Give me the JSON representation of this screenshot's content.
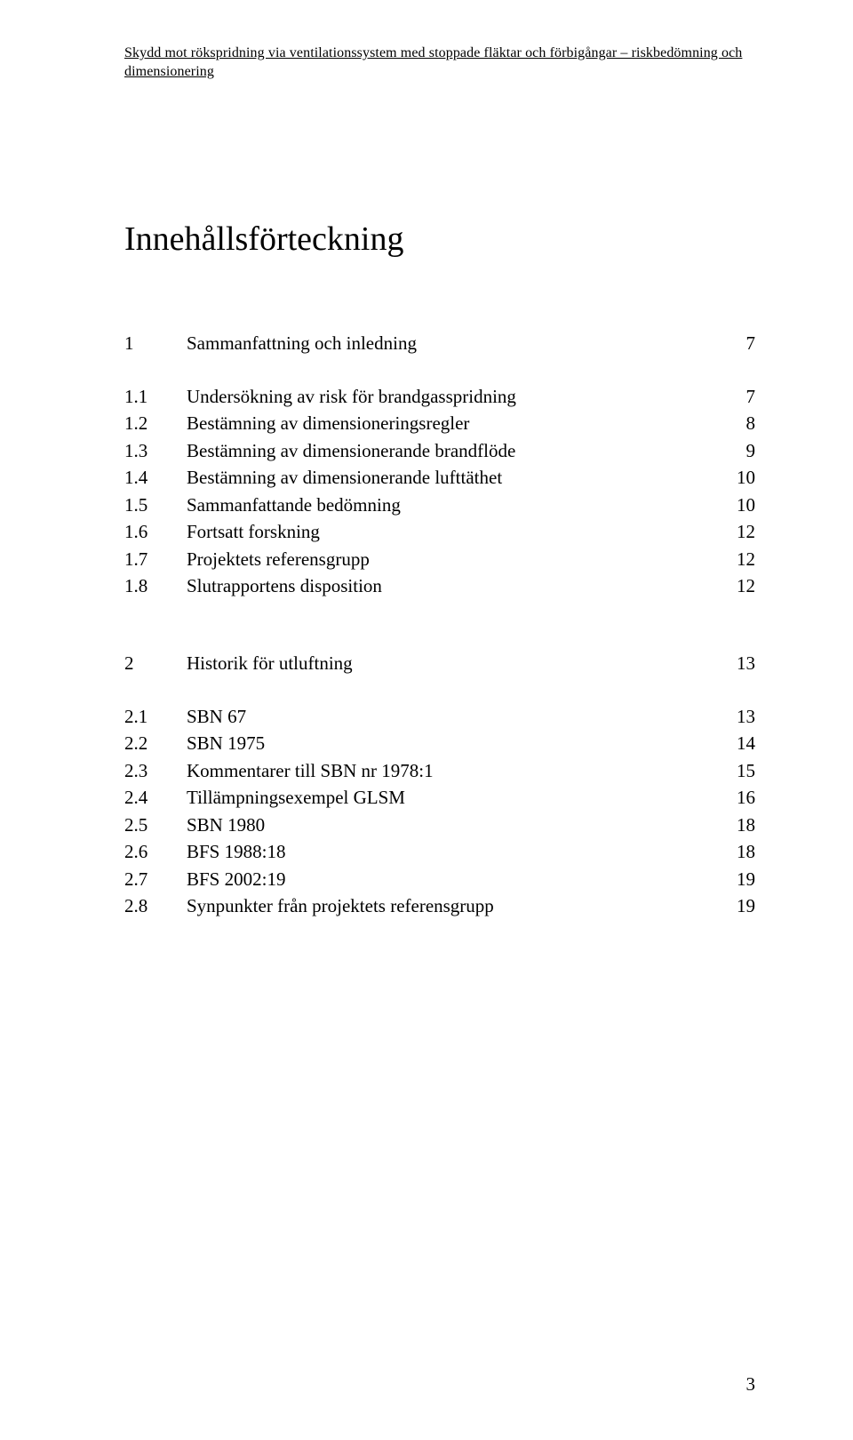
{
  "header": {
    "running_title": "Skydd mot rökspridning via ventilationssystem med stoppade fläktar och förbigångar – riskbedömning och dimensionering"
  },
  "title": "Innehållsförteckning",
  "toc": {
    "section1": {
      "num": "1",
      "title": "Sammanfattning och inledning",
      "page": "7",
      "items": [
        {
          "num": "1.1",
          "title": "Undersökning av risk för brandgasspridning",
          "page": "7"
        },
        {
          "num": "1.2",
          "title": "Bestämning av dimensioneringsregler",
          "page": "8"
        },
        {
          "num": "1.3",
          "title": "Bestämning av dimensionerande brandflöde",
          "page": "9"
        },
        {
          "num": "1.4",
          "title": "Bestämning av dimensionerande lufttäthet",
          "page": "10"
        },
        {
          "num": "1.5",
          "title": "Sammanfattande bedömning",
          "page": "10"
        },
        {
          "num": "1.6",
          "title": "Fortsatt forskning",
          "page": "12"
        },
        {
          "num": "1.7",
          "title": "Projektets referensgrupp",
          "page": "12"
        },
        {
          "num": "1.8",
          "title": "Slutrapportens disposition",
          "page": "12"
        }
      ]
    },
    "section2": {
      "num": "2",
      "title": "Historik för utluftning",
      "page": "13",
      "items": [
        {
          "num": "2.1",
          "title": "SBN 67",
          "page": "13"
        },
        {
          "num": "2.2",
          "title": "SBN 1975",
          "page": "14"
        },
        {
          "num": "2.3",
          "title": "Kommentarer till SBN nr 1978:1",
          "page": "15"
        },
        {
          "num": "2.4",
          "title": "Tillämpningsexempel GLSM",
          "page": "16"
        },
        {
          "num": "2.5",
          "title": "SBN 1980",
          "page": "18"
        },
        {
          "num": "2.6",
          "title": "BFS 1988:18",
          "page": "18"
        },
        {
          "num": "2.7",
          "title": "BFS 2002:19",
          "page": "19"
        },
        {
          "num": "2.8",
          "title": "Synpunkter från projektets referensgrupp",
          "page": "19"
        }
      ]
    }
  },
  "page_number": "3"
}
